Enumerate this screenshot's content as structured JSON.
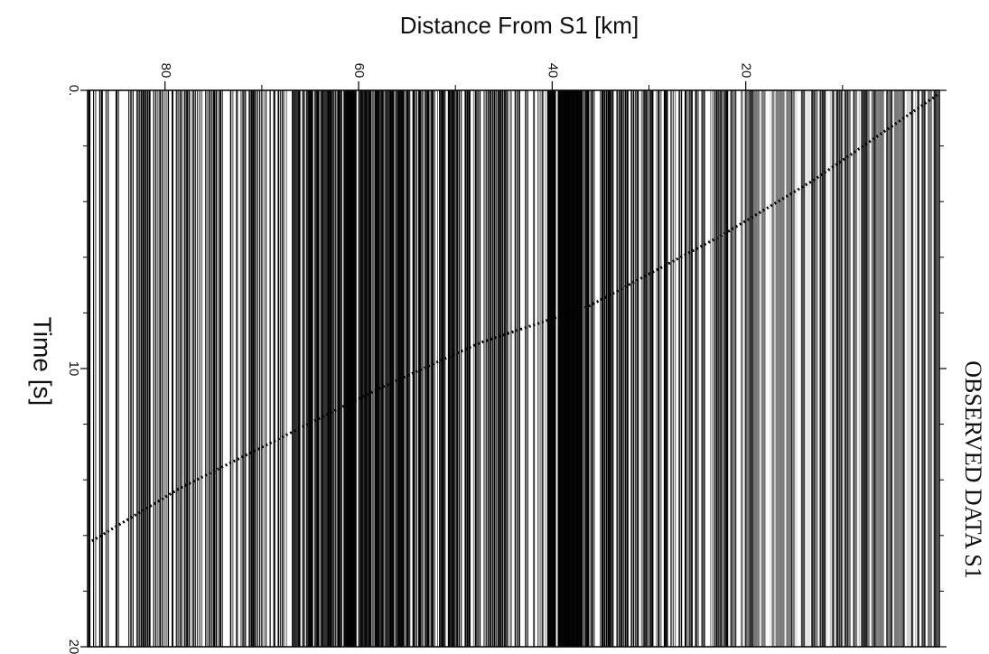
{
  "chart_data": {
    "type": "seismic-section",
    "title": "Distance From S1 [km]",
    "y_label": "Time [s]",
    "annotation": "OBSERVED DATA S1",
    "xlim": [
      88,
      0
    ],
    "xticks": [
      80,
      60,
      40,
      20
    ],
    "xminorticks": [
      70,
      50,
      30,
      10
    ],
    "ylim": [
      0,
      20
    ],
    "yticks": [
      {
        "value": 0,
        "label": "0."
      },
      10,
      20
    ],
    "yminorticks": [
      2,
      4,
      6,
      8,
      12,
      14,
      16,
      18
    ]
  }
}
